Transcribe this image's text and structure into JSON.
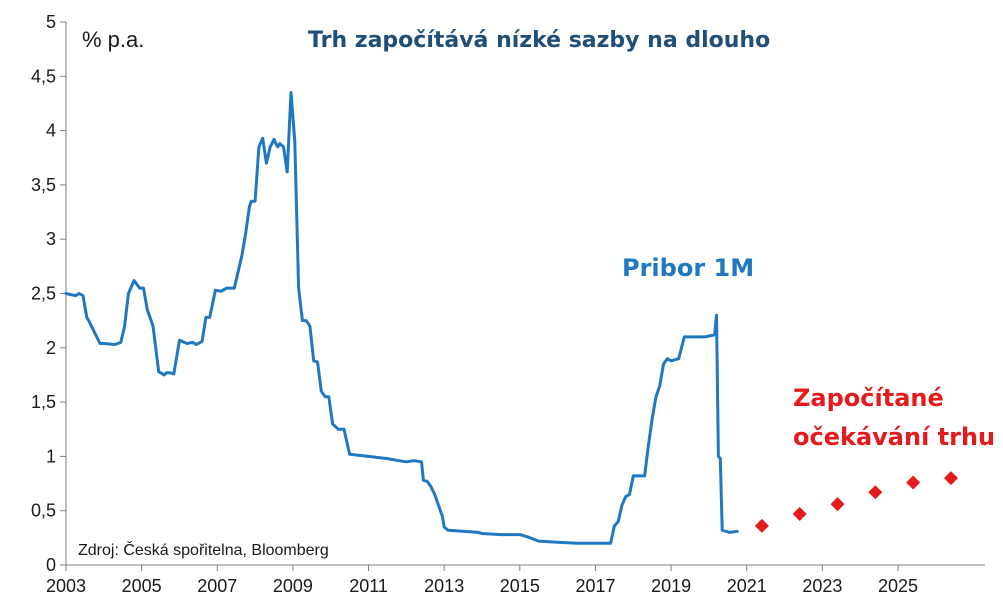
{
  "chart_data": {
    "type": "line",
    "title": "Trh započítává nízké sazby na dlouho",
    "ylabel": "% p.a.",
    "source": "Zdroj: Česká spořitelna, Bloomberg",
    "xlim": [
      2003,
      2027.3
    ],
    "ylim": [
      0,
      5
    ],
    "x_ticks": [
      2003,
      2005,
      2007,
      2009,
      2011,
      2013,
      2015,
      2017,
      2019,
      2021,
      2023,
      2025
    ],
    "y_ticks": [
      0,
      0.5,
      1,
      1.5,
      2,
      2.5,
      3,
      3.5,
      4,
      4.5,
      5
    ],
    "y_tick_labels": [
      "0",
      "0,5",
      "1",
      "1,5",
      "2",
      "2,5",
      "3",
      "3,5",
      "4",
      "4,5",
      "5"
    ],
    "grid": false,
    "colors": {
      "pribor": "#1f78c1",
      "expectations": "#e41a1c",
      "title": "#1f4e79"
    },
    "series": [
      {
        "name": "Pribor 1M",
        "style": "line",
        "x": [
          2003.0,
          2003.25,
          2003.35,
          2003.45,
          2003.55,
          2003.6,
          2003.9,
          2004.0,
          2004.3,
          2004.45,
          2004.55,
          2004.65,
          2004.8,
          2004.95,
          2005.05,
          2005.15,
          2005.25,
          2005.3,
          2005.45,
          2005.6,
          2005.65,
          2005.75,
          2005.85,
          2006.0,
          2006.2,
          2006.35,
          2006.45,
          2006.6,
          2006.7,
          2006.8,
          2006.95,
          2007.1,
          2007.25,
          2007.35,
          2007.45,
          2007.55,
          2007.65,
          2007.75,
          2007.85,
          2007.9,
          2008.0,
          2008.1,
          2008.2,
          2008.3,
          2008.4,
          2008.5,
          2008.55,
          2008.6,
          2008.65,
          2008.75,
          2008.85,
          2008.95,
          2009.05,
          2009.15,
          2009.25,
          2009.35,
          2009.45,
          2009.55,
          2009.65,
          2009.75,
          2009.85,
          2009.95,
          2010.05,
          2010.2,
          2010.35,
          2010.5,
          2011.0,
          2011.5,
          2011.8,
          2012.0,
          2012.2,
          2012.4,
          2012.45,
          2012.55,
          2012.65,
          2012.75,
          2012.85,
          2012.95,
          2013.0,
          2013.1,
          2013.5,
          2013.9,
          2014.0,
          2014.5,
          2015.0,
          2015.2,
          2015.5,
          2016.0,
          2016.5,
          2017.0,
          2017.4,
          2017.5,
          2017.6,
          2017.7,
          2017.8,
          2017.9,
          2018.0,
          2018.2,
          2018.3,
          2018.4,
          2018.5,
          2018.6,
          2018.7,
          2018.8,
          2018.9,
          2019.0,
          2019.2,
          2019.35,
          2019.5,
          2019.8,
          2019.9,
          2020.15,
          2020.2,
          2020.25,
          2020.3,
          2020.35,
          2020.45,
          2020.55,
          2020.75
        ],
        "values": [
          2.5,
          2.48,
          2.5,
          2.48,
          2.28,
          2.25,
          2.04,
          2.04,
          2.03,
          2.05,
          2.2,
          2.5,
          2.62,
          2.55,
          2.55,
          2.35,
          2.25,
          2.2,
          1.78,
          1.75,
          1.77,
          1.77,
          1.76,
          2.07,
          2.04,
          2.05,
          2.03,
          2.06,
          2.28,
          2.28,
          2.53,
          2.52,
          2.55,
          2.55,
          2.55,
          2.7,
          2.85,
          3.05,
          3.3,
          3.35,
          3.35,
          3.85,
          3.93,
          3.7,
          3.85,
          3.92,
          3.88,
          3.85,
          3.88,
          3.85,
          3.62,
          4.35,
          3.9,
          2.55,
          2.25,
          2.25,
          2.2,
          1.88,
          1.87,
          1.6,
          1.55,
          1.55,
          1.3,
          1.25,
          1.25,
          1.02,
          1.0,
          0.98,
          0.96,
          0.95,
          0.96,
          0.95,
          0.78,
          0.77,
          0.72,
          0.65,
          0.55,
          0.45,
          0.35,
          0.32,
          0.31,
          0.3,
          0.29,
          0.28,
          0.28,
          0.26,
          0.22,
          0.21,
          0.2,
          0.2,
          0.2,
          0.36,
          0.4,
          0.55,
          0.63,
          0.65,
          0.82,
          0.82,
          0.82,
          1.1,
          1.35,
          1.55,
          1.65,
          1.85,
          1.9,
          1.88,
          1.9,
          2.1,
          2.1,
          2.1,
          2.1,
          2.12,
          2.3,
          1.0,
          0.98,
          0.32,
          0.31,
          0.3,
          0.31
        ]
      },
      {
        "name": "Započítané očekávání trhu",
        "style": "markers",
        "x": [
          2021.4,
          2022.4,
          2023.4,
          2024.4,
          2025.4,
          2026.4
        ],
        "values": [
          0.36,
          0.47,
          0.56,
          0.67,
          0.76,
          0.8
        ]
      }
    ],
    "annotations": {
      "pribor_label": "Pribor 1M",
      "expectations_label_line1": "Započítané",
      "expectations_label_line2": "očekávání trhu"
    }
  }
}
